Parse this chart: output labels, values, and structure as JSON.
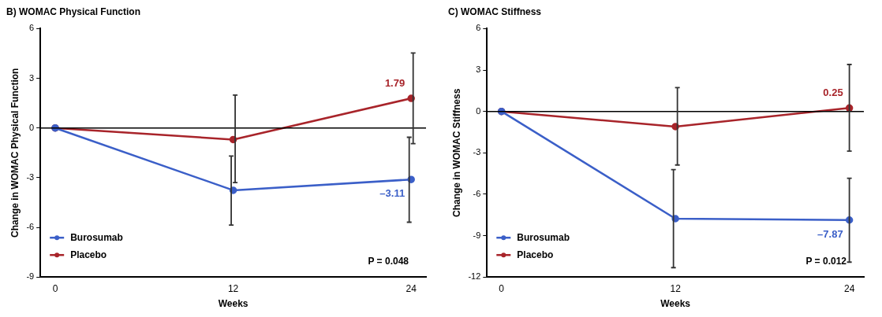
{
  "chart_data": [
    {
      "type": "line",
      "title": "B) WOMAC Physical Function",
      "xlabel": "Weeks",
      "ylabel": "Change in WOMAC Physical Function",
      "x": [
        0,
        12,
        24
      ],
      "xlim": [
        -1,
        25
      ],
      "xticks": [
        0,
        12,
        24
      ],
      "ylim": [
        -9,
        6
      ],
      "yticks": [
        -9,
        -6,
        -3,
        0,
        3,
        6
      ],
      "grid": false,
      "legend": "bottom left",
      "marker": "circle",
      "line_style": "solid",
      "series": [
        {
          "name": "Burosumab",
          "color": "#3b5fc8",
          "values": [
            0,
            -3.76,
            -3.11
          ],
          "errors": [
            null,
            [
              -5.86,
              -1.69
            ],
            [
              -5.69,
              -0.56
            ]
          ],
          "value_labels": [
            null,
            null,
            "–3.11"
          ]
        },
        {
          "name": "Placebo",
          "color": "#a8242a",
          "values": [
            0,
            -0.7,
            1.79
          ],
          "errors": [
            null,
            [
              -3.3,
              1.99
            ],
            [
              -0.95,
              4.53
            ]
          ],
          "value_labels": [
            null,
            null,
            "1.79"
          ]
        }
      ],
      "ref_lines": [
        {
          "axis": "y",
          "value": 0,
          "color": "#000000"
        }
      ],
      "annotations": [
        "P = 0.048"
      ]
    },
    {
      "type": "line",
      "title": "C) WOMAC Stiffness",
      "xlabel": "Weeks",
      "ylabel": "Change in WOMAC Stiffness",
      "x": [
        0,
        12,
        24
      ],
      "xlim": [
        -1,
        25
      ],
      "xticks": [
        0,
        12,
        24
      ],
      "ylim": [
        -12,
        6
      ],
      "yticks": [
        -12,
        -9,
        -6,
        -3,
        0,
        3,
        6
      ],
      "grid": false,
      "legend": "bottom left",
      "marker": "circle",
      "line_style": "solid",
      "series": [
        {
          "name": "Burosumab",
          "color": "#3b5fc8",
          "values": [
            0,
            -7.77,
            -7.87
          ],
          "errors": [
            null,
            [
              -11.32,
              -4.22
            ],
            [
              -10.92,
              -4.84
            ]
          ],
          "value_labels": [
            null,
            null,
            "–7.87"
          ]
        },
        {
          "name": "Placebo",
          "color": "#a8242a",
          "values": [
            0,
            -1.1,
            0.25
          ],
          "errors": [
            null,
            [
              -3.88,
              1.73
            ],
            [
              -2.88,
              3.4
            ]
          ],
          "value_labels": [
            null,
            null,
            "0.25"
          ]
        }
      ],
      "ref_lines": [
        {
          "axis": "y",
          "value": 0,
          "color": "#000000"
        }
      ],
      "annotations": [
        "P = 0.012"
      ]
    }
  ]
}
